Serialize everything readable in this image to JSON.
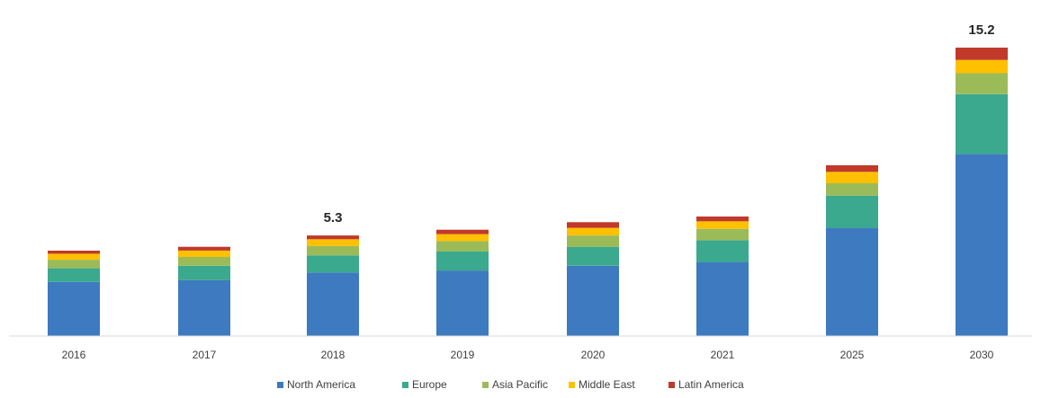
{
  "chart_data": {
    "type": "bar",
    "stacked": true,
    "categories": [
      "2016",
      "2017",
      "2018",
      "2019",
      "2020",
      "2021",
      "2025",
      "2030"
    ],
    "series": [
      {
        "name": "North America",
        "color": "#3d7abf",
        "values": [
          2.85,
          2.95,
          3.35,
          3.45,
          3.7,
          3.9,
          5.7,
          9.6
        ]
      },
      {
        "name": "Europe",
        "color": "#3aa98e",
        "values": [
          0.72,
          0.75,
          0.9,
          1.0,
          1.0,
          1.15,
          1.7,
          3.15
        ]
      },
      {
        "name": "Asia Pacific",
        "color": "#9bbb59",
        "values": [
          0.45,
          0.47,
          0.5,
          0.55,
          0.6,
          0.6,
          0.65,
          1.1
        ]
      },
      {
        "name": "Middle East",
        "color": "#ffc000",
        "values": [
          0.32,
          0.33,
          0.35,
          0.37,
          0.4,
          0.4,
          0.6,
          0.7
        ]
      },
      {
        "name": "Latin America",
        "color": "#c0392b",
        "values": [
          0.16,
          0.2,
          0.2,
          0.23,
          0.3,
          0.25,
          0.35,
          0.65
        ]
      }
    ],
    "data_labels": [
      {
        "category": "2018",
        "text": "5.3"
      },
      {
        "category": "2030",
        "text": "15.2"
      }
    ],
    "ylim": [
      0,
      17
    ],
    "title": "",
    "xlabel": "",
    "ylabel": "",
    "grid": false,
    "legend_position": "bottom"
  }
}
